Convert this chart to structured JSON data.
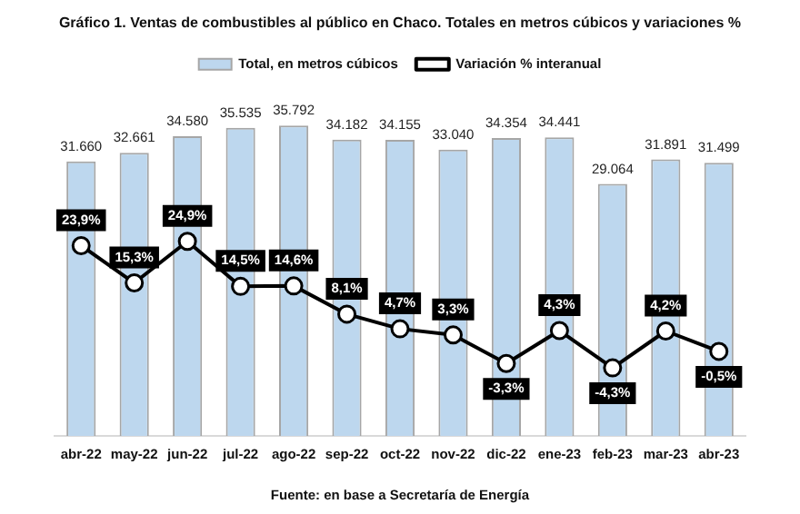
{
  "chart_data": {
    "type": "bar",
    "title": "Gráfico 1. Ventas de combustibles al público en Chaco. Totales en metros cúbicos y variaciones %",
    "categories": [
      "abr-22",
      "may-22",
      "jun-22",
      "jul-22",
      "ago-22",
      "sep-22",
      "oct-22",
      "nov-22",
      "dic-22",
      "ene-23",
      "feb-23",
      "mar-23",
      "abr-23"
    ],
    "series": [
      {
        "name": "Total, en metros cúbicos",
        "color": "#bdd7ee",
        "values": [
          31660,
          32661,
          34580,
          35535,
          35792,
          34182,
          34155,
          33040,
          34354,
          34441,
          29064,
          31891,
          31499
        ],
        "value_labels": [
          "31.660",
          "32.661",
          "34.580",
          "35.535",
          "35.792",
          "34.182",
          "34.155",
          "33.040",
          "34.354",
          "34.441",
          "29.064",
          "31.891",
          "31.499"
        ]
      },
      {
        "name": "Variación % interanual",
        "type": "line",
        "axis": "y2",
        "color": "#000000",
        "values": [
          23.9,
          15.3,
          24.9,
          14.5,
          14.6,
          8.1,
          4.7,
          3.3,
          -3.3,
          4.3,
          -4.3,
          4.2,
          -0.5
        ],
        "value_labels": [
          "23,9%",
          "15,3%",
          "24,9%",
          "14,5%",
          "14,6%",
          "8,1%",
          "4,7%",
          "3,3%",
          "-3,3%",
          "4,3%",
          "-4,3%",
          "4,2%",
          "-0,5%"
        ]
      }
    ],
    "tick_labels": "x",
    "grid": false,
    "legend": "top",
    "marker": "circle",
    "line_style": "solid",
    "annotations": [
      "Fuente: en base a Secretaría de Energía"
    ]
  }
}
